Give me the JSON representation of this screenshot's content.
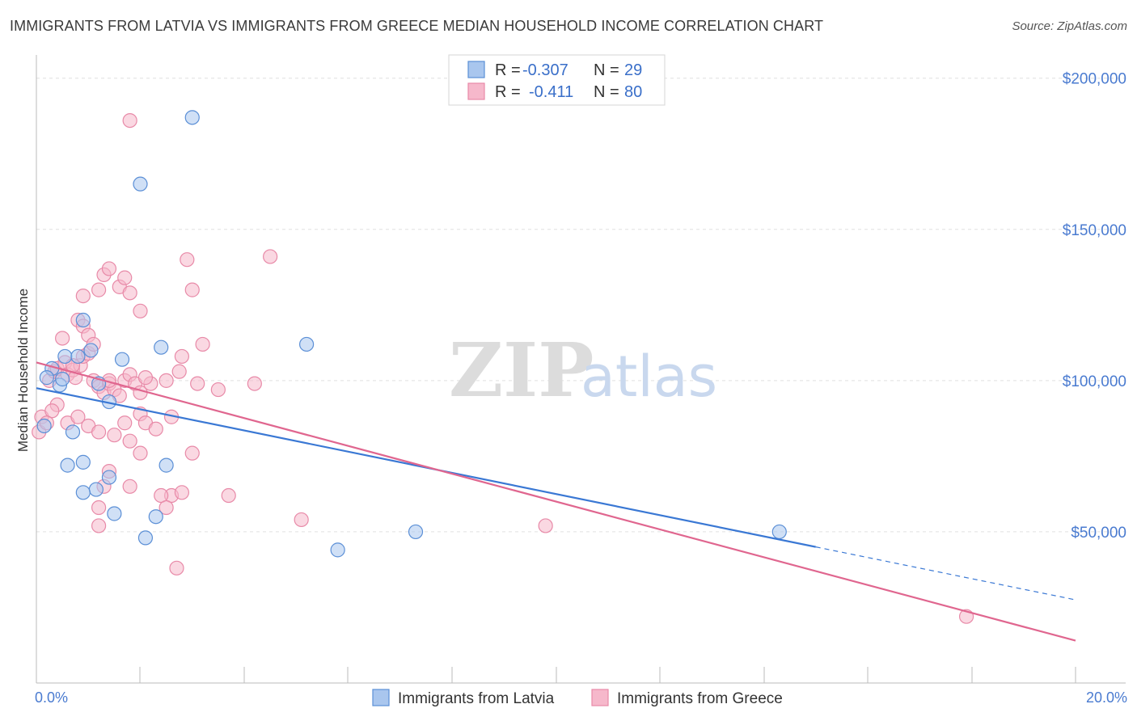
{
  "header": {
    "title": "IMMIGRANTS FROM LATVIA VS IMMIGRANTS FROM GREECE MEDIAN HOUSEHOLD INCOME CORRELATION CHART",
    "source": "Source: ZipAtlas.com"
  },
  "watermark": {
    "zip": "ZIP",
    "atlas": "atlas"
  },
  "legend_top": {
    "latvia": {
      "r_label": "R =",
      "r_value": "-0.307",
      "n_label": "N =",
      "n_value": "29"
    },
    "greece": {
      "r_label": "R =",
      "r_value": "-0.411",
      "n_label": "N =",
      "n_value": "80"
    }
  },
  "legend_bottom": {
    "latvia": "Immigrants from Latvia",
    "greece": "Immigrants from Greece"
  },
  "colors": {
    "latvia_fill": "#a9c6ee",
    "latvia_stroke": "#5b8fd6",
    "latvia_line": "#3a78d4",
    "greece_fill": "#f6b8cb",
    "greece_stroke": "#e88aa8",
    "greece_line": "#e0668f",
    "grid": "#e0e0e0",
    "axis_text": "#4a7bd0"
  },
  "chart_data": {
    "type": "scatter",
    "title": "IMMIGRANTS FROM LATVIA VS IMMIGRANTS FROM GREECE MEDIAN HOUSEHOLD INCOME CORRELATION CHART",
    "xlabel": "",
    "ylabel": "Median Household Income",
    "xlim": [
      0,
      20
    ],
    "ylim": [
      0,
      205000
    ],
    "x_tick_labels": [
      {
        "value": 0,
        "label": "0.0%"
      },
      {
        "value": 20,
        "label": "20.0%"
      }
    ],
    "y_ticks": [
      {
        "value": 50000,
        "label": "$50,000"
      },
      {
        "value": 100000,
        "label": "$100,000"
      },
      {
        "value": 150000,
        "label": "$150,000"
      },
      {
        "value": 200000,
        "label": "$200,000"
      }
    ],
    "series": [
      {
        "name": "Immigrants from Latvia",
        "color_key": "latvia",
        "points": [
          [
            0.15,
            85000
          ],
          [
            0.3,
            104000
          ],
          [
            0.55,
            108000
          ],
          [
            0.45,
            98500
          ],
          [
            0.8,
            108000
          ],
          [
            1.05,
            110000
          ],
          [
            0.9,
            120000
          ],
          [
            1.65,
            107000
          ],
          [
            2.4,
            111000
          ],
          [
            0.5,
            100500
          ],
          [
            0.7,
            83000
          ],
          [
            0.6,
            72000
          ],
          [
            0.9,
            73000
          ],
          [
            1.4,
            93000
          ],
          [
            1.4,
            68000
          ],
          [
            1.15,
            64000
          ],
          [
            0.9,
            63000
          ],
          [
            1.5,
            56000
          ],
          [
            2.3,
            55000
          ],
          [
            2.5,
            72000
          ],
          [
            2.1,
            48000
          ],
          [
            3.0,
            187000
          ],
          [
            2.0,
            165000
          ],
          [
            5.2,
            112000
          ],
          [
            7.3,
            50000
          ],
          [
            5.8,
            44000
          ],
          [
            14.3,
            50000
          ],
          [
            0.2,
            101000
          ],
          [
            1.2,
            99000
          ]
        ],
        "trend": {
          "x0": 0,
          "y0": 97500,
          "x1": 15.0,
          "y1": 45000,
          "dash_x1": 20.0,
          "dash_y1": 27500
        }
      },
      {
        "name": "Immigrants from Greece",
        "color_key": "greece",
        "points": [
          [
            0.05,
            83000
          ],
          [
            0.1,
            88000
          ],
          [
            0.25,
            100000
          ],
          [
            0.35,
            103000
          ],
          [
            0.4,
            104000
          ],
          [
            0.55,
            106000
          ],
          [
            0.6,
            102000
          ],
          [
            0.7,
            103500
          ],
          [
            0.75,
            101000
          ],
          [
            0.85,
            105000
          ],
          [
            0.9,
            108000
          ],
          [
            1.0,
            109000
          ],
          [
            1.1,
            100000
          ],
          [
            1.2,
            98000
          ],
          [
            1.3,
            96000
          ],
          [
            1.4,
            99000
          ],
          [
            1.5,
            97000
          ],
          [
            1.6,
            95000
          ],
          [
            1.7,
            100000
          ],
          [
            1.8,
            102000
          ],
          [
            1.9,
            99000
          ],
          [
            2.0,
            96000
          ],
          [
            2.2,
            99000
          ],
          [
            2.5,
            100000
          ],
          [
            2.8,
            108000
          ],
          [
            2.75,
            103000
          ],
          [
            3.2,
            112000
          ],
          [
            3.5,
            97000
          ],
          [
            4.2,
            99000
          ],
          [
            0.9,
            128000
          ],
          [
            1.2,
            130000
          ],
          [
            1.3,
            135000
          ],
          [
            1.4,
            137000
          ],
          [
            1.6,
            131000
          ],
          [
            1.7,
            134000
          ],
          [
            1.8,
            129000
          ],
          [
            2.0,
            123000
          ],
          [
            2.9,
            140000
          ],
          [
            3.0,
            130000
          ],
          [
            4.5,
            141000
          ],
          [
            0.5,
            114000
          ],
          [
            0.8,
            120000
          ],
          [
            0.9,
            118000
          ],
          [
            1.0,
            115000
          ],
          [
            1.1,
            112000
          ],
          [
            0.4,
            92000
          ],
          [
            0.6,
            86000
          ],
          [
            0.8,
            88000
          ],
          [
            1.0,
            85000
          ],
          [
            1.2,
            83000
          ],
          [
            1.5,
            82000
          ],
          [
            1.7,
            86000
          ],
          [
            1.8,
            80000
          ],
          [
            2.0,
            89000
          ],
          [
            2.1,
            86000
          ],
          [
            2.3,
            84000
          ],
          [
            2.6,
            88000
          ],
          [
            2.0,
            76000
          ],
          [
            2.6,
            62000
          ],
          [
            3.0,
            76000
          ],
          [
            1.4,
            70000
          ],
          [
            1.3,
            65000
          ],
          [
            1.8,
            65000
          ],
          [
            2.4,
            62000
          ],
          [
            2.8,
            63000
          ],
          [
            2.5,
            58000
          ],
          [
            3.7,
            62000
          ],
          [
            1.2,
            58000
          ],
          [
            1.2,
            52000
          ],
          [
            2.7,
            38000
          ],
          [
            5.1,
            54000
          ],
          [
            9.8,
            52000
          ],
          [
            17.9,
            22000
          ],
          [
            1.8,
            186000
          ],
          [
            0.3,
            90000
          ],
          [
            0.7,
            105000
          ],
          [
            1.4,
            100000
          ],
          [
            2.1,
            101000
          ],
          [
            3.1,
            99000
          ],
          [
            0.2,
            86000
          ]
        ],
        "trend": {
          "x0": 0,
          "y0": 106000,
          "x1": 20.0,
          "y1": 14000
        }
      }
    ]
  }
}
